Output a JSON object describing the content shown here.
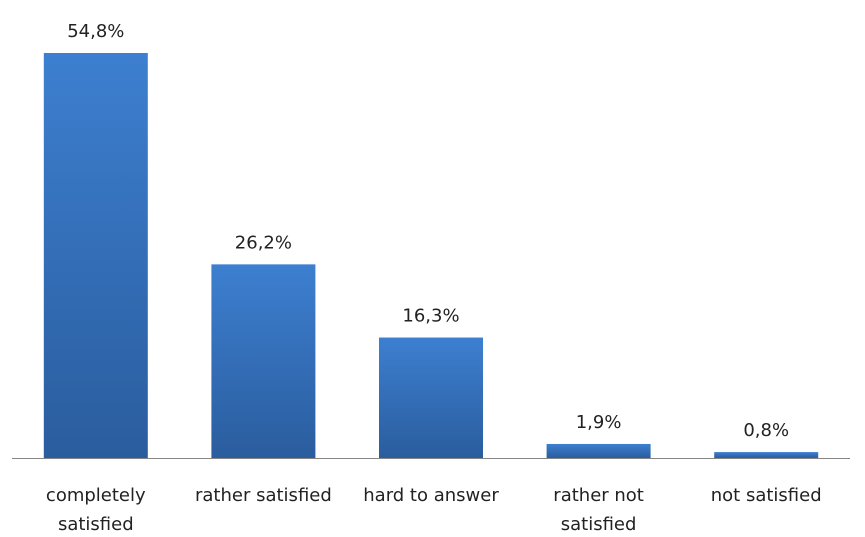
{
  "chart_data": {
    "type": "bar",
    "categories": [
      [
        "completely",
        "satisfied"
      ],
      [
        "rather satisfied"
      ],
      [
        "hard to answer"
      ],
      [
        "rather not",
        "satisfied"
      ],
      [
        "not satisfied"
      ]
    ],
    "values": [
      54.8,
      26.2,
      16.3,
      1.9,
      0.8
    ],
    "value_labels": [
      "54,8%",
      "26,2%",
      "16,3%",
      "1,9%",
      "0,8%"
    ],
    "title": "",
    "xlabel": "",
    "ylabel": "",
    "ylim": [
      0,
      54.8
    ],
    "grid": false,
    "legend": "none",
    "colors": {
      "bar_top": "#3d7fd0",
      "bar_bottom": "#2a5d9e",
      "axis": "#868686"
    }
  }
}
